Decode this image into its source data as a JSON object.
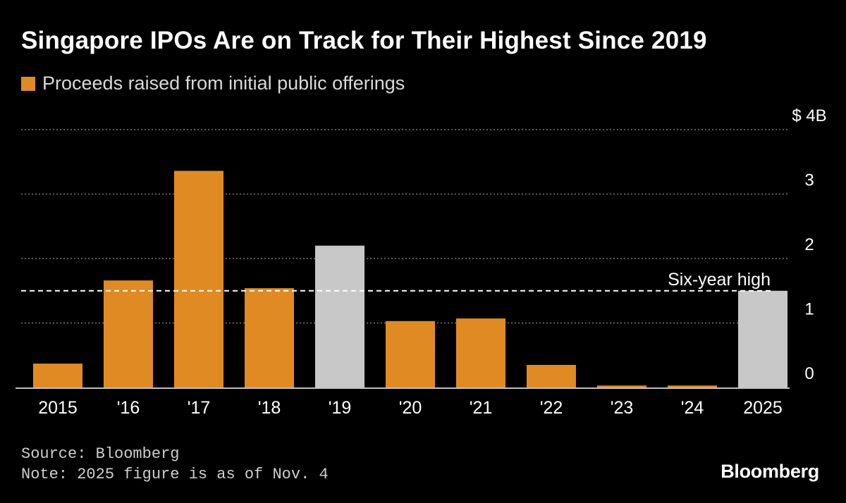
{
  "title": "Singapore IPOs Are on Track for Their Highest Since 2019",
  "legend": {
    "label": "Proceeds raised from initial public offerings"
  },
  "colors": {
    "background": "#000000",
    "primary_bar": "#e08a24",
    "highlight_bar": "#c8c8c8",
    "gridline": "#777777",
    "reference_line": "#ffffff",
    "text": "#ffffff"
  },
  "chart_data": {
    "type": "bar",
    "title": "Singapore IPOs Are on Track for Their Highest Since 2019",
    "xlabel": "",
    "ylabel": "",
    "ylim": [
      0,
      4
    ],
    "yticks": [
      0,
      1,
      2,
      3,
      4
    ],
    "ytick_labels": [
      "0",
      "1",
      "2",
      "3",
      "$ 4B"
    ],
    "categories": [
      "2015",
      "'16",
      "'17",
      "'18",
      "'19",
      "'20",
      "'21",
      "'22",
      "'23",
      "'24",
      "2025"
    ],
    "values": [
      0.37,
      1.66,
      3.36,
      1.54,
      2.2,
      1.03,
      1.07,
      0.35,
      0.03,
      0.03,
      1.5
    ],
    "highlighted": [
      false,
      false,
      false,
      false,
      true,
      false,
      false,
      false,
      false,
      false,
      true
    ],
    "legend": [
      "Proceeds raised from initial public offerings"
    ],
    "legend_position": "top-left",
    "grid": true,
    "reference_line": {
      "value": 1.5,
      "label": "Six-year high",
      "style": "dashed"
    }
  },
  "footer": {
    "source": "Source: Bloomberg",
    "note": "Note: 2025 figure is as of Nov. 4"
  },
  "brand": "Bloomberg"
}
